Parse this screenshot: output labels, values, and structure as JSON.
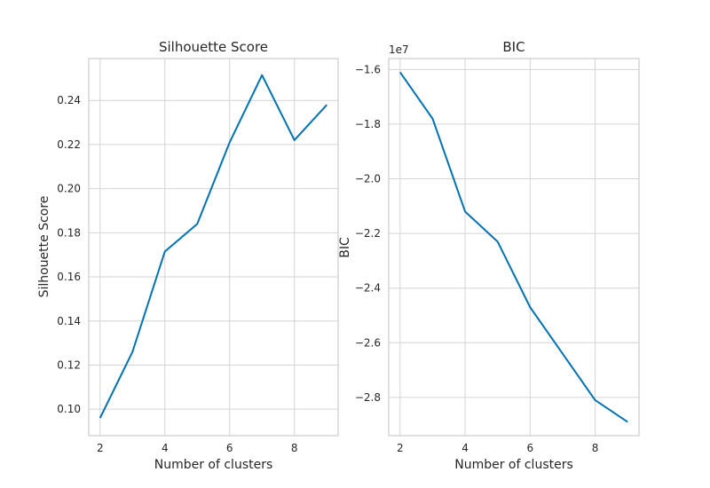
{
  "chart_data": [
    {
      "type": "line",
      "title": "Silhouette Score",
      "xlabel": "Number of clusters",
      "ylabel": "Silhouette Score",
      "x": [
        2,
        3,
        4,
        5,
        6,
        7,
        8,
        9
      ],
      "xlim": [
        1.65,
        9.35
      ],
      "ylim": [
        0.088,
        0.259
      ],
      "xticks": [
        2,
        4,
        6,
        8
      ],
      "xtick_labels": [
        "2",
        "4",
        "6",
        "8"
      ],
      "yticks": [
        0.1,
        0.12,
        0.14,
        0.16,
        0.18,
        0.2,
        0.22,
        0.24
      ],
      "ytick_labels": [
        "0.10",
        "0.12",
        "0.14",
        "0.16",
        "0.18",
        "0.20",
        "0.22",
        "0.24"
      ],
      "series": [
        {
          "values": [
            0.096,
            0.126,
            0.1715,
            0.184,
            0.221,
            0.2515,
            0.222,
            0.238
          ],
          "color": "#0072b2"
        }
      ],
      "grid": true,
      "offset_label": ""
    },
    {
      "type": "line",
      "title": "BIC",
      "xlabel": "Number of clusters",
      "ylabel": "BIC",
      "x": [
        2,
        3,
        4,
        5,
        6,
        7,
        8,
        9
      ],
      "xlim": [
        1.65,
        9.35
      ],
      "ylim": [
        -29400000.0,
        -15600000.0
      ],
      "xticks": [
        2,
        4,
        6,
        8
      ],
      "xtick_labels": [
        "2",
        "4",
        "6",
        "8"
      ],
      "yticks": [
        -16000000.0,
        -18000000.0,
        -20000000.0,
        -22000000.0,
        -24000000.0,
        -26000000.0,
        -28000000.0
      ],
      "ytick_labels": [
        "−1.6",
        "−1.8",
        "−2.0",
        "−2.2",
        "−2.4",
        "−2.6",
        "−2.8"
      ],
      "series": [
        {
          "values": [
            -16100000.0,
            -17800000.0,
            -21200000.0,
            -22300000.0,
            -24700000.0,
            -26400000.0,
            -28100000.0,
            -28900000.0
          ],
          "color": "#0072b2"
        }
      ],
      "grid": true,
      "offset_label": "1e7"
    }
  ]
}
